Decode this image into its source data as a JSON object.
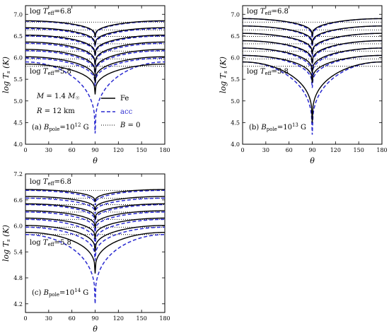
{
  "panels": [
    {
      "tag": "(a)",
      "pole_label": "B_pole=10^12 G",
      "title_lines": [
        "M = 1.4 M_sun",
        "R = 12 km"
      ],
      "legend": [
        {
          "label": "Fe",
          "style": "solid",
          "color": "#000000"
        },
        {
          "label": "acc",
          "style": "dashed",
          "color": "#2a2ad0"
        },
        {
          "label": "B = 0",
          "style": "dotted",
          "color": "#000000"
        }
      ],
      "annotation_top": "log T_eff=6.8",
      "annotation_bottom": "log T_eff=5.8",
      "ylabel": "log T_s (K)",
      "xlabel": "θ"
    },
    {
      "tag": "(b)",
      "pole_label": "B_pole=10^13 G",
      "annotation_top": "log T_eff=6.8",
      "annotation_bottom": "log T_eff=5.8",
      "ylabel": "log T_s (K)",
      "xlabel": "θ"
    },
    {
      "tag": "(c)",
      "pole_label": "B_pole=10^14 G",
      "annotation_top": "log T_eff=6.8",
      "annotation_bottom": "log T_eff=5.8",
      "ylabel": "log T_s (K)",
      "xlabel": "θ"
    }
  ],
  "chart_data": [
    {
      "type": "line",
      "panel": "a",
      "xlim": [
        0,
        180
      ],
      "ylim": [
        4.0,
        7.2
      ],
      "xticks": [
        0,
        30,
        60,
        90,
        120,
        150,
        180
      ],
      "yticks": [
        4.0,
        4.5,
        5.0,
        5.5,
        6.0,
        6.5,
        7.0
      ],
      "ytick_labels": [
        "4.0",
        "4.5",
        "5.0",
        "5.5",
        "6.0",
        "6.5",
        "7.0"
      ],
      "B0_levels": [
        6.82,
        6.64,
        6.49,
        6.32,
        6.15,
        5.97,
        5.8
      ],
      "Fe_eq": [
        6.48,
        6.28,
        6.05,
        5.83,
        5.62,
        5.42,
        5.15
      ],
      "Fe_pole": [
        6.85,
        6.69,
        6.52,
        6.36,
        6.19,
        6.02,
        5.85
      ],
      "acc_eq": [
        6.46,
        6.25,
        6.02,
        5.8,
        5.58,
        5.35,
        4.25
      ],
      "acc_pole": [
        6.84,
        6.67,
        6.5,
        6.33,
        6.16,
        5.99,
        5.9
      ]
    },
    {
      "type": "line",
      "panel": "b",
      "xlim": [
        0,
        180
      ],
      "ylim": [
        4.0,
        7.2
      ],
      "xticks": [
        0,
        30,
        60,
        90,
        120,
        150,
        180
      ],
      "yticks": [
        4.0,
        4.5,
        5.0,
        5.5,
        6.0,
        6.5,
        7.0
      ],
      "ytick_labels": [
        "4.0",
        "4.5",
        "5.0",
        "5.5",
        "6.0",
        "6.5",
        "7.0"
      ],
      "B0_levels": [
        6.82,
        6.64,
        6.49,
        6.32,
        6.15,
        5.97,
        5.8
      ],
      "Fe_eq": [
        6.5,
        6.3,
        6.08,
        5.86,
        5.64,
        5.42,
        4.5
      ],
      "Fe_pole": [
        6.9,
        6.73,
        6.56,
        6.39,
        6.22,
        6.05,
        5.9
      ],
      "acc_eq": [
        6.45,
        6.25,
        6.03,
        5.8,
        5.55,
        5.3,
        4.22
      ],
      "acc_pole": [
        6.9,
        6.73,
        6.56,
        6.39,
        6.22,
        6.05,
        5.9
      ]
    },
    {
      "type": "line",
      "panel": "c",
      "xlim": [
        0,
        180
      ],
      "ylim": [
        4.0,
        7.2
      ],
      "xticks": [
        0,
        30,
        60,
        90,
        120,
        150,
        180
      ],
      "yticks": [
        4.2,
        4.8,
        5.4,
        6.0,
        6.6,
        7.2
      ],
      "ytick_labels": [
        "4.2",
        "4.8",
        "5.4",
        "6.0",
        "6.6",
        "7.2"
      ],
      "B0_levels": [
        6.82,
        6.64,
        6.49,
        6.32,
        6.15,
        5.97,
        5.8
      ],
      "Fe_eq": [
        6.55,
        6.35,
        6.15,
        5.95,
        5.7,
        5.4,
        4.9
      ],
      "Fe_pole": [
        6.84,
        6.68,
        6.51,
        6.35,
        6.18,
        6.01,
        5.85
      ],
      "acc_eq": [
        6.48,
        6.28,
        6.08,
        5.85,
        5.55,
        5.2,
        4.2
      ],
      "acc_pole": [
        6.82,
        6.64,
        6.49,
        6.32,
        6.15,
        5.97,
        5.8
      ]
    }
  ]
}
